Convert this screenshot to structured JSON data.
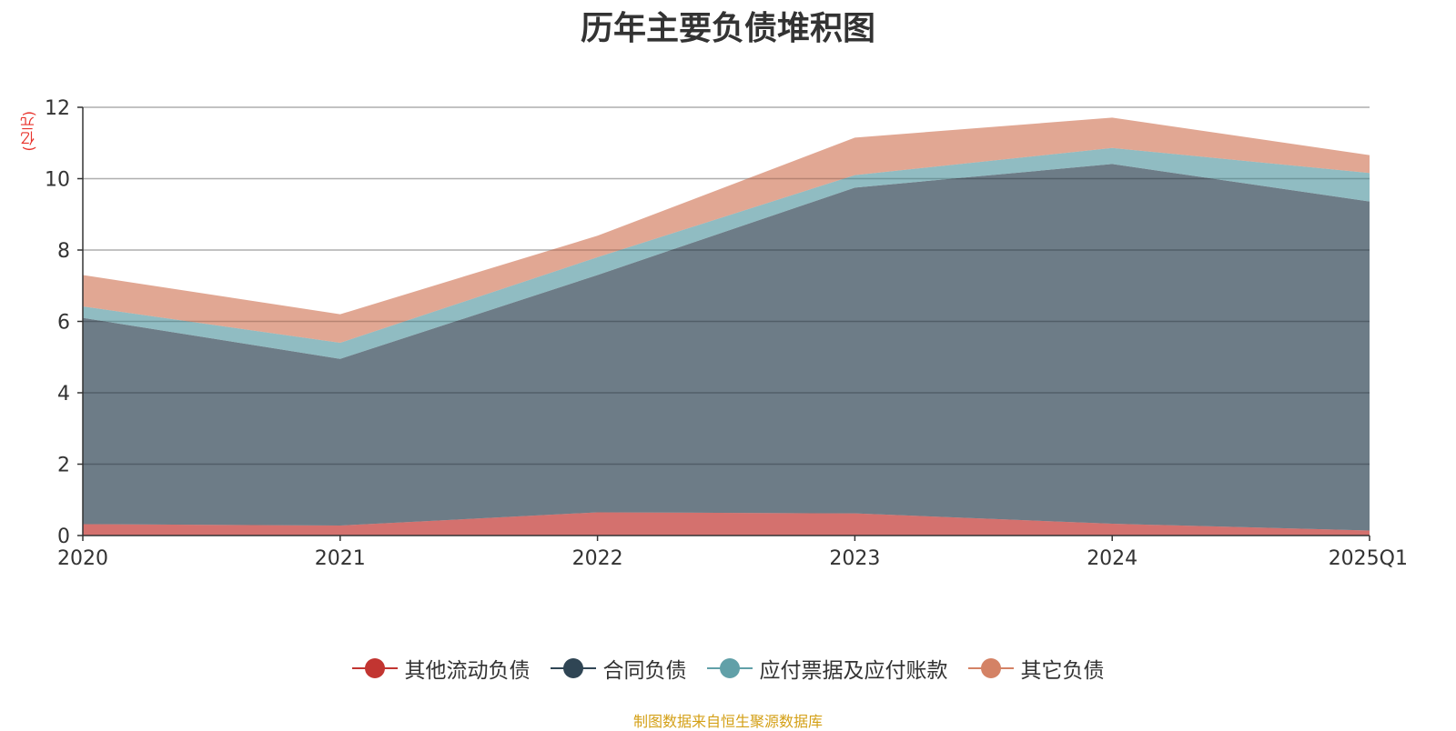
{
  "chart_data": {
    "type": "area",
    "stacked": true,
    "title": "历年主要负债堆积图",
    "ylabel": "(亿元)",
    "categories": [
      "2020",
      "2021",
      "2022",
      "2023",
      "2024",
      "2025Q1"
    ],
    "ylim": [
      0,
      12
    ],
    "yticks": [
      0,
      2,
      4,
      6,
      8,
      10,
      12
    ],
    "grid": true,
    "series": [
      {
        "name": "其他流动负债",
        "color": "#c23531",
        "values": [
          0.32,
          0.28,
          0.65,
          0.62,
          0.33,
          0.14
        ]
      },
      {
        "name": "合同负债",
        "color": "#2f4554",
        "values": [
          5.78,
          4.67,
          6.65,
          9.13,
          10.08,
          9.22
        ]
      },
      {
        "name": "应付票据及应付账款",
        "color": "#61a0a8",
        "values": [
          0.32,
          0.45,
          0.5,
          0.35,
          0.45,
          0.8
        ]
      },
      {
        "name": "其它负债",
        "color": "#d48265",
        "values": [
          0.88,
          0.8,
          0.6,
          1.05,
          0.85,
          0.5
        ]
      }
    ],
    "legend_position": "bottom"
  },
  "source_note": "制图数据来自恒生聚源数据库"
}
